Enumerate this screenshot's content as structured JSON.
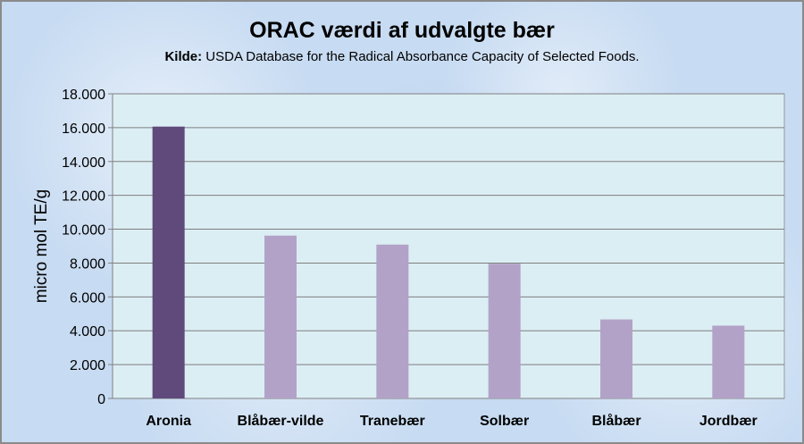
{
  "chart_data": {
    "type": "bar",
    "title": "ORAC værdi af udvalgte bær",
    "subtitle_label": "Kilde:",
    "subtitle_text": " USDA Database for the Radical Absorbance Capacity of Selected Foods.",
    "ylabel": "micro mol TE/g",
    "xlabel": "",
    "categories": [
      "Aronia",
      "Blåbær-vilde",
      "Tranebær",
      "Solbær",
      "Blåbær",
      "Jordbær"
    ],
    "values": [
      16062,
      9621,
      9090,
      7960,
      4669,
      4302
    ],
    "ylim": [
      0,
      18000
    ],
    "yticks": [
      0,
      2000,
      4000,
      6000,
      8000,
      10000,
      12000,
      14000,
      16000,
      18000
    ],
    "ytick_labels": [
      "0",
      "2.000",
      "4.000",
      "6.000",
      "8.000",
      "10.000",
      "12.000",
      "14.000",
      "16.000",
      "18.000"
    ],
    "grid": true,
    "legend": "none",
    "colors": {
      "highlight_bar": "#5f4a7b",
      "bar": "#b3a2c7",
      "plot_background": "#dbeef4",
      "gridline": "#7f7f7f"
    }
  }
}
